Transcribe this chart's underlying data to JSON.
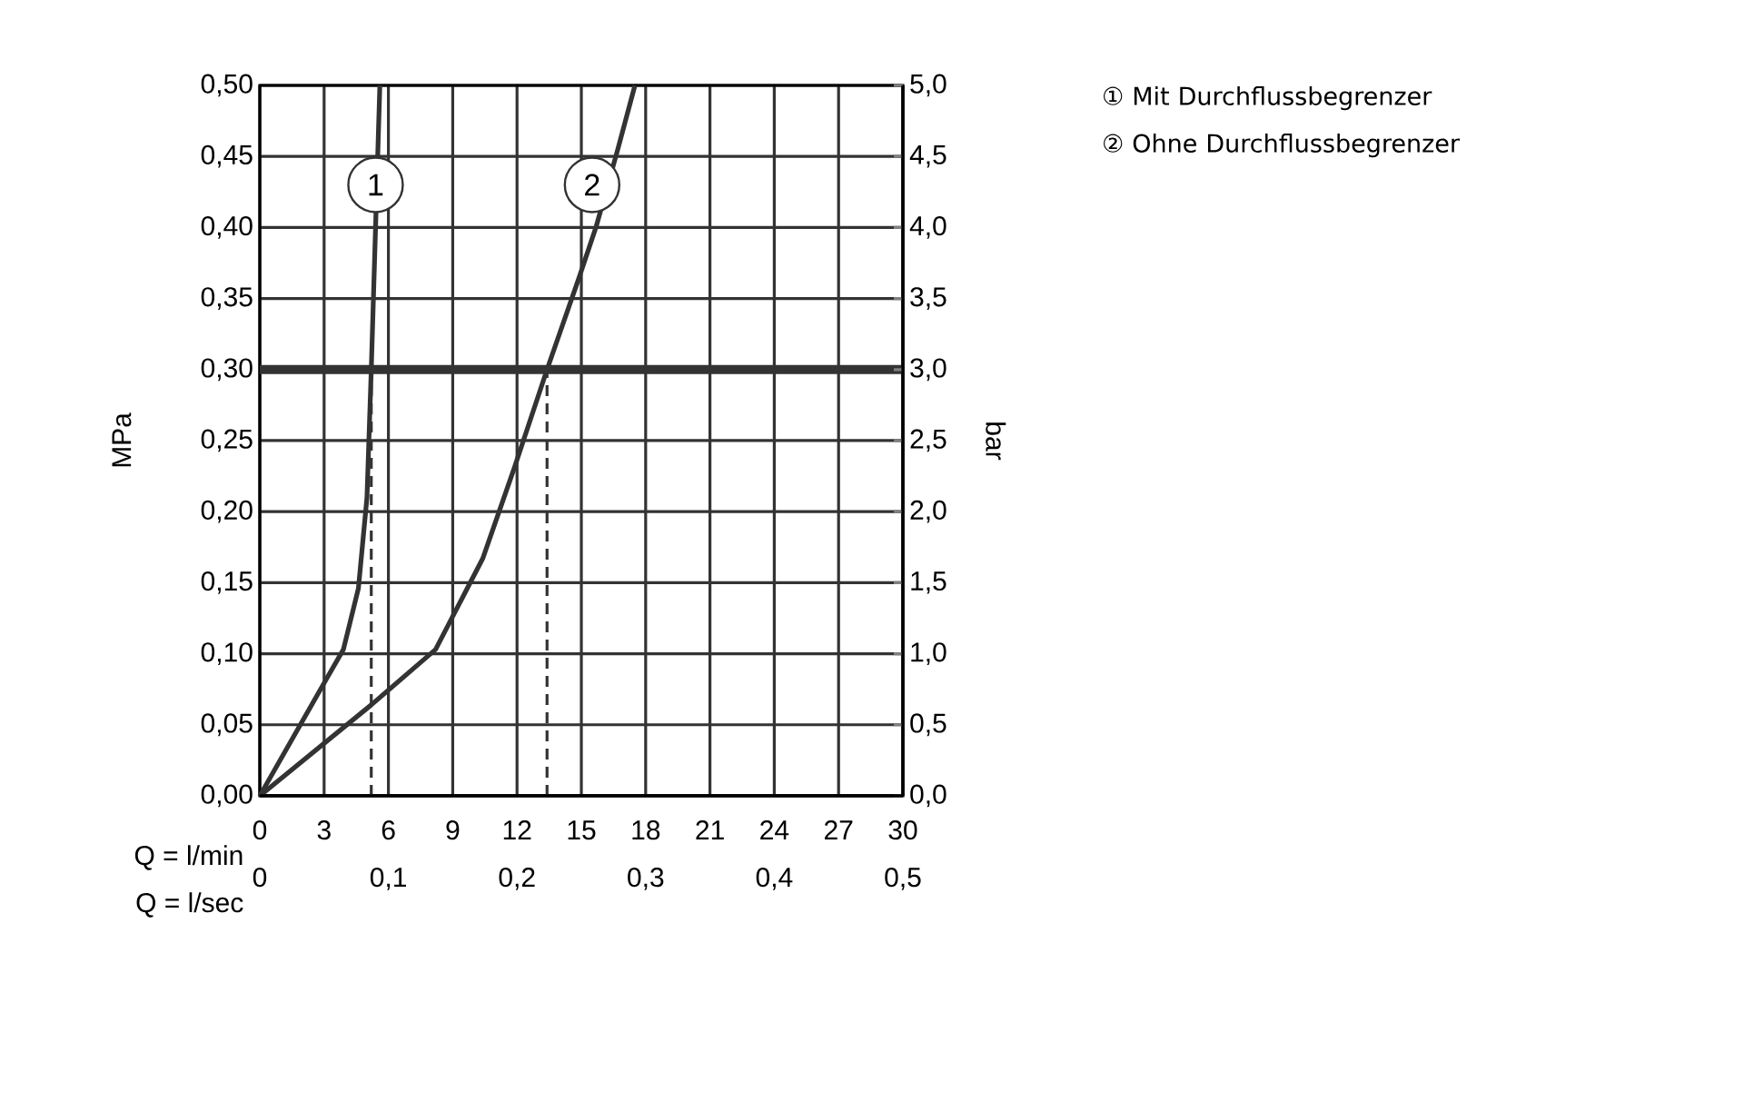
{
  "chart_data": {
    "type": "line",
    "xlabel": "Q = l/min",
    "x2label": "Q = l/sec",
    "ylabel": "MPa",
    "y2label": "bar",
    "xlim": [
      0,
      30
    ],
    "xticks": [
      0,
      3,
      6,
      9,
      12,
      15,
      18,
      21,
      24,
      27,
      30
    ],
    "x2lim": [
      0,
      0.5
    ],
    "x2ticks": [
      0,
      {
        "value": 0.1,
        "label": "0,1"
      },
      {
        "value": 0.2,
        "label": "0,2"
      },
      {
        "value": 0.3,
        "label": "0,3"
      },
      {
        "value": 0.4,
        "label": "0,4"
      },
      {
        "value": 0.5,
        "label": "0,5"
      }
    ],
    "ylim": [
      0,
      0.5
    ],
    "yticks": [
      {
        "value": 0,
        "label": "0,00"
      },
      {
        "value": 0.05,
        "label": "0,05"
      },
      {
        "value": 0.1,
        "label": "0,10"
      },
      {
        "value": 0.15,
        "label": "0,15"
      },
      {
        "value": 0.2,
        "label": "0,20"
      },
      {
        "value": 0.25,
        "label": "0,25"
      },
      {
        "value": 0.3,
        "label": "0,30"
      },
      {
        "value": 0.35,
        "label": "0,35"
      },
      {
        "value": 0.4,
        "label": "0,40"
      },
      {
        "value": 0.45,
        "label": "0,45"
      },
      {
        "value": 0.5,
        "label": "0,50"
      }
    ],
    "y2lim": [
      0,
      5
    ],
    "y2ticks": [
      {
        "value": 0,
        "label": "0,0"
      },
      {
        "value": 0.5,
        "label": "0,5"
      },
      {
        "value": 1,
        "label": "1,0"
      },
      {
        "value": 1.5,
        "label": "1,5"
      },
      {
        "value": 2,
        "label": "2,0"
      },
      {
        "value": 2.5,
        "label": "2,5"
      },
      {
        "value": 3,
        "label": "3,0"
      },
      {
        "value": 3.5,
        "label": "3,5"
      },
      {
        "value": 4,
        "label": "4,0"
      },
      {
        "value": 4.5,
        "label": "4,5"
      },
      {
        "value": 5,
        "label": "5,0"
      }
    ],
    "grid": true,
    "series": [
      {
        "color": "#333333",
        "x": [
          0,
          3.1,
          3.9,
          4.6,
          5.0,
          5.2,
          5.4,
          5.6
        ],
        "values": [
          0,
          0.082,
          0.103,
          0.146,
          0.21,
          0.3,
          0.4,
          0.5
        ]
      },
      {
        "color": "#333333",
        "x": [
          0,
          5.2,
          8.2,
          10.4,
          11.9,
          13.4,
          14.9,
          15.7,
          16.7,
          17.5
        ],
        "values": [
          0,
          0.064,
          0.103,
          0.167,
          0.232,
          0.3,
          0.365,
          0.401,
          0.455,
          0.5
        ]
      },
      {
        "color": "#333333",
        "line_style": "dashed",
        "x": [
          5.2,
          5.2
        ],
        "values": [
          0,
          0.3
        ]
      },
      {
        "color": "#333333",
        "line_style": "dashed",
        "x": [
          13.4,
          13.4
        ],
        "values": [
          0,
          0.3
        ]
      }
    ],
    "ref_lines": [
      {
        "axis": "y",
        "value": 0.3,
        "color": "#333333"
      }
    ],
    "annotations": [
      {
        "text": "1",
        "x": 5.4,
        "y": 0.43
      },
      {
        "text": "2",
        "x": 15.5,
        "y": 0.43
      },
      "① Mit Durchflussbegrenzer",
      "② Ohne Durchflussbegrenzer"
    ]
  }
}
